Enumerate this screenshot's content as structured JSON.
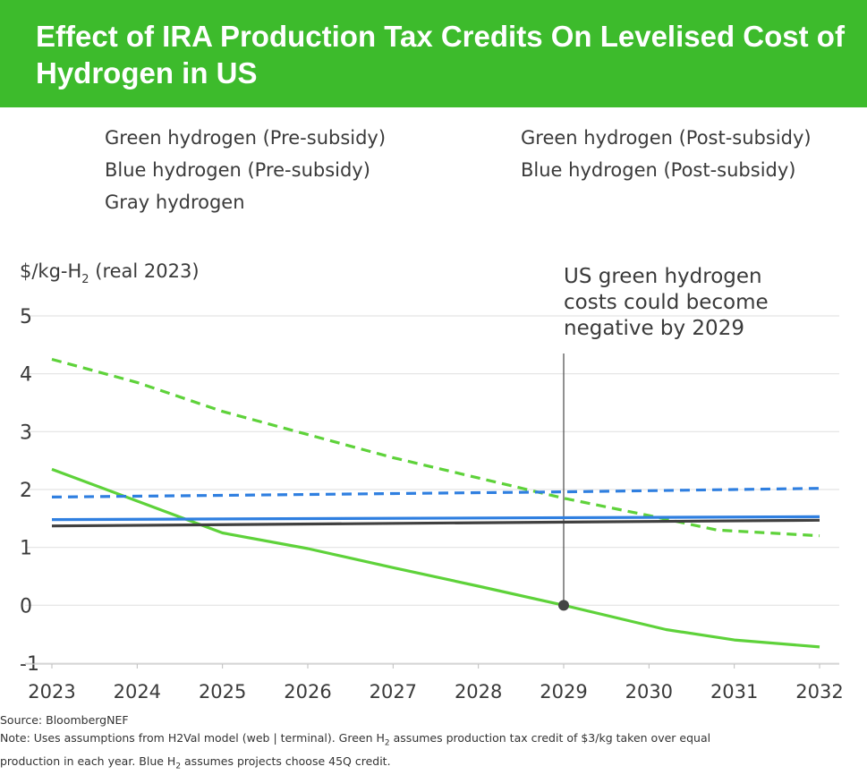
{
  "header": {
    "title": "Effect of IRA Production Tax Credits On Levelised Cost of Hydrogen in US",
    "background_color": "#3dbb2c"
  },
  "legend": [
    {
      "label": "Green hydrogen (Pre-subsidy)",
      "color": "#5ed23a",
      "dash": "dashed"
    },
    {
      "label": "Green hydrogen (Post-subsidy)",
      "color": "#5ed23a",
      "dash": "solid"
    },
    {
      "label": "Blue hydrogen (Pre-subsidy)",
      "color": "#2f7fe0",
      "dash": "dashed"
    },
    {
      "label": "Blue hydrogen (Post-subsidy)",
      "color": "#2f7fe0",
      "dash": "solid"
    },
    {
      "label": "Gray hydrogen",
      "color": "#404040",
      "dash": "solid"
    }
  ],
  "chart_data": {
    "type": "line",
    "ylabel": "$/kg-H",
    "ylabel_subscript": "2",
    "ylabel_suffix": " (real 2023)",
    "ylim": [
      -1,
      5
    ],
    "yticks": [
      -1,
      0,
      1,
      2,
      3,
      4,
      5
    ],
    "xlim": [
      2023,
      2032
    ],
    "xticks": [
      2023,
      2024,
      2025,
      2026,
      2027,
      2028,
      2029,
      2030,
      2031,
      2032
    ],
    "grid": true,
    "legend_position": "top",
    "series": [
      {
        "name": "Green hydrogen (Pre-subsidy)",
        "color": "#5ed23a",
        "dash": "dashed",
        "x": [
          2023,
          2024,
          2025,
          2026,
          2027,
          2028,
          2029,
          2030,
          2030.8,
          2032
        ],
        "y": [
          4.25,
          3.85,
          3.35,
          2.95,
          2.55,
          2.2,
          1.85,
          1.55,
          1.3,
          1.2
        ]
      },
      {
        "name": "Green hydrogen (Post-subsidy)",
        "color": "#5ed23a",
        "dash": "solid",
        "x": [
          2023,
          2024,
          2025,
          2026,
          2027,
          2028,
          2029,
          2030.2,
          2031,
          2032
        ],
        "y": [
          2.35,
          1.8,
          1.25,
          0.98,
          0.65,
          0.33,
          0.0,
          -0.42,
          -0.6,
          -0.72
        ]
      },
      {
        "name": "Blue hydrogen (Pre-subsidy)",
        "color": "#2f7fe0",
        "dash": "dashed",
        "x": [
          2023,
          2025,
          2027,
          2029,
          2031,
          2032
        ],
        "y": [
          1.87,
          1.9,
          1.93,
          1.96,
          2.0,
          2.02
        ]
      },
      {
        "name": "Blue hydrogen (Post-subsidy)",
        "color": "#2f7fe0",
        "dash": "solid",
        "x": [
          2023,
          2032
        ],
        "y": [
          1.48,
          1.53
        ]
      },
      {
        "name": "Gray hydrogen",
        "color": "#404040",
        "dash": "solid",
        "x": [
          2023,
          2032
        ],
        "y": [
          1.37,
          1.47
        ]
      }
    ],
    "annotation": {
      "lines": [
        "US green hydrogen",
        "costs could become",
        "negative by 2029"
      ],
      "x": 2029,
      "point_y": 0,
      "line_top_y": 4.35
    }
  },
  "footer": {
    "source": "Source: BloombergNEF",
    "note_line1_a": "Note: Uses assumptions from H2Val model (web | terminal). Green H",
    "note_line1_sub": "2",
    "note_line1_b": " assumes production tax credit of $3/kg taken over equal",
    "note_line2_a": "production in each year. Blue H",
    "note_line2_sub": "2",
    "note_line2_b": " assumes projects choose 45Q credit."
  }
}
